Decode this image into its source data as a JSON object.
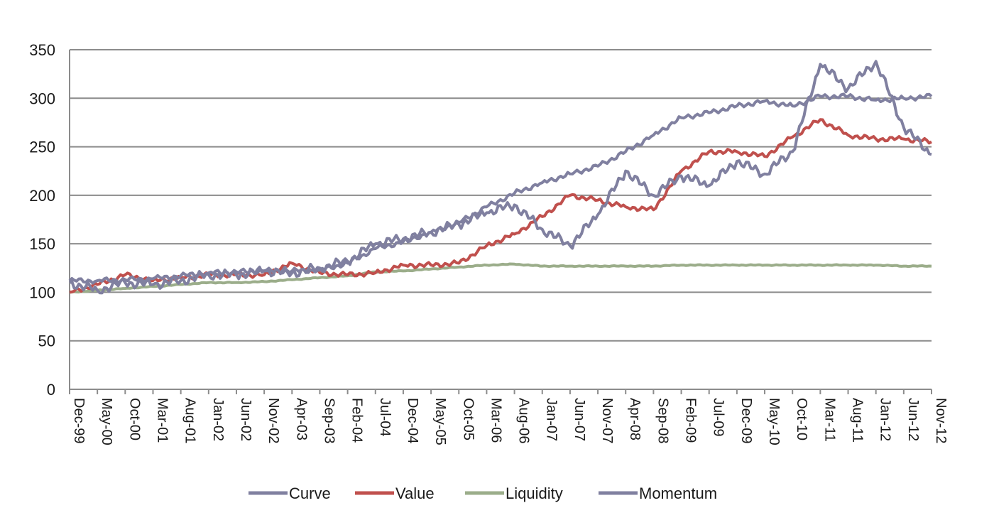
{
  "chart_data": {
    "type": "line",
    "title": "",
    "xlabel": "",
    "ylabel": "",
    "ylim": [
      0,
      350
    ],
    "y_ticks": [
      0,
      50,
      100,
      150,
      200,
      250,
      300,
      350
    ],
    "x_ticks": [
      "Dec-99",
      "May-00",
      "Oct-00",
      "Mar-01",
      "Aug-01",
      "Jan-02",
      "Jun-02",
      "Nov-02",
      "Apr-03",
      "Sep-03",
      "Feb-04",
      "Jul-04",
      "Dec-04",
      "May-05",
      "Oct-05",
      "Mar-06",
      "Aug-06",
      "Jan-07",
      "Jun-07",
      "Nov-07",
      "Apr-08",
      "Sep-08",
      "Feb-09",
      "Jul-09",
      "Dec-09",
      "May-10",
      "Oct-10",
      "Mar-11",
      "Aug-11",
      "Jan-12",
      "Jun-12",
      "Nov-12"
    ],
    "grid": true,
    "legend_position": "bottom",
    "x": [
      "Dec-99",
      "May-00",
      "Oct-00",
      "Mar-01",
      "Aug-01",
      "Jan-02",
      "Jun-02",
      "Nov-02",
      "Apr-03",
      "Sep-03",
      "Feb-04",
      "Jul-04",
      "Dec-04",
      "May-05",
      "Oct-05",
      "Mar-06",
      "Aug-06",
      "Jan-07",
      "Jun-07",
      "Nov-07",
      "Apr-08",
      "Sep-08",
      "Feb-09",
      "Jul-09",
      "Dec-09",
      "May-10",
      "Oct-10",
      "Mar-11",
      "Aug-11",
      "Jan-12",
      "Jun-12",
      "Nov-12"
    ],
    "series": [
      {
        "name": "Curve",
        "color": "#8080a0",
        "values": [
          112,
          112,
          113,
          114,
          117,
          120,
          121,
          122,
          122,
          123,
          130,
          145,
          152,
          162,
          172,
          188,
          202,
          213,
          222,
          230,
          245,
          262,
          280,
          285,
          292,
          297,
          292,
          302,
          302,
          298,
          300,
          302
        ]
      },
      {
        "name": "Value",
        "color": "#c0504d",
        "values": [
          100,
          108,
          118,
          112,
          115,
          118,
          118,
          118,
          130,
          120,
          118,
          120,
          128,
          128,
          130,
          148,
          160,
          178,
          200,
          195,
          188,
          185,
          225,
          245,
          245,
          240,
          260,
          278,
          262,
          258,
          258,
          255
        ]
      },
      {
        "name": "Liquidity",
        "color": "#9bad8a",
        "values": [
          100,
          102,
          104,
          106,
          108,
          110,
          110,
          111,
          113,
          115,
          117,
          121,
          122,
          124,
          126,
          128,
          129,
          127,
          127,
          127,
          127,
          127,
          128,
          128,
          128,
          128,
          128,
          128,
          128,
          128,
          127,
          127
        ]
      },
      {
        "name": "Momentum",
        "color": "#8080a0",
        "values": [
          110,
          102,
          110,
          108,
          112,
          118,
          118,
          122,
          120,
          125,
          132,
          150,
          155,
          162,
          170,
          182,
          190,
          165,
          148,
          180,
          225,
          200,
          220,
          210,
          235,
          222,
          245,
          335,
          310,
          338,
          270,
          242
        ]
      }
    ]
  }
}
